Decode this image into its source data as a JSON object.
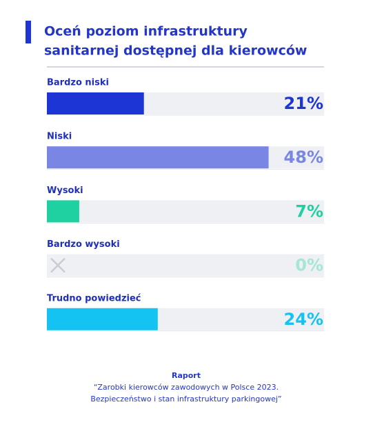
{
  "chart_data": {
    "type": "bar",
    "orientation": "horizontal",
    "title": [
      "Oceń poziom infrastruktury",
      "sanitarnej dostępnej dla kierowców"
    ],
    "categories": [
      "Bardzo niski",
      "Niski",
      "Wysoki",
      "Bardzo wysoki",
      "Trudno powiedzieć"
    ],
    "values": [
      21,
      48,
      7,
      0,
      24
    ],
    "value_labels": [
      "21%",
      "48%",
      "7%",
      "0%",
      "24%"
    ],
    "colors": [
      "#1c35d4",
      "#7a86e4",
      "#1fd0a0",
      "#1fd0a0",
      "#14c3f2"
    ],
    "label_colors": [
      "#1c35d4",
      "#7a86e4",
      "#1fd0a0",
      "#a3e7d4",
      "#14c3f2"
    ],
    "xlim": [
      0,
      60
    ],
    "source_title": "Raport",
    "source": [
      "“Zarobki kierowców zawodowych w Polsce 2023.",
      "Bezpieczeństwo i stan infrastruktury parkingowej”"
    ]
  }
}
